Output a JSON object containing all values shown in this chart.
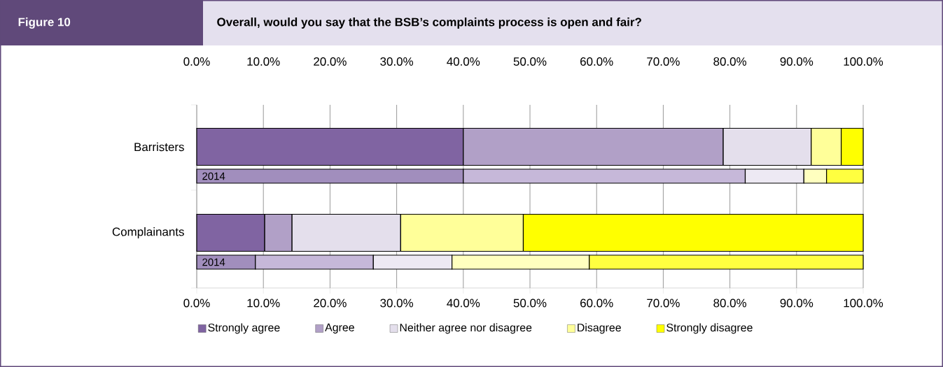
{
  "chart_data": {
    "type": "bar",
    "orientation": "horizontal",
    "stacked": true,
    "title": "Figure 10",
    "subtitle": "Overall, would you say that the BSB’s complaints process is open and fair?",
    "categories": [
      "Barristers",
      "2014",
      "Complainants",
      "2014"
    ],
    "series": [
      {
        "name": "Strongly agree",
        "colors": [
          "#8064a2",
          "#a18ebd",
          "#8064a2",
          "#a18ebd"
        ],
        "values": [
          40.0,
          40.0,
          10.2,
          8.8
        ]
      },
      {
        "name": "Agree",
        "colors": [
          "#b1a0c7",
          "#c6b8d9",
          "#b1a0c7",
          "#c6b8d9"
        ],
        "values": [
          39.0,
          42.3,
          4.1,
          17.7
        ]
      },
      {
        "name": "Neither agree nor disagree",
        "colors": [
          "#e4dfec",
          "#ede9f3",
          "#e4dfec",
          "#ede9f3"
        ],
        "values": [
          13.2,
          8.8,
          16.3,
          11.8
        ]
      },
      {
        "name": "Disagree",
        "colors": [
          "#ffff99",
          "#ffffbf",
          "#ffff99",
          "#ffffbf"
        ],
        "values": [
          4.5,
          3.4,
          18.4,
          20.6
        ]
      },
      {
        "name": "Strongly disagree",
        "colors": [
          "#ffff00",
          "#ffff40",
          "#ffff00",
          "#ffff40"
        ],
        "values": [
          3.3,
          5.5,
          51.0,
          41.1
        ]
      }
    ],
    "xlim": [
      0,
      100
    ],
    "xticks": [
      {
        "value": 0,
        "label": "0.0%"
      },
      {
        "value": 10,
        "label": "10.0%"
      },
      {
        "value": 20,
        "label": "20.0%"
      },
      {
        "value": 30,
        "label": "30.0%"
      },
      {
        "value": 40,
        "label": "40.0%"
      },
      {
        "value": 50,
        "label": "50.0%"
      },
      {
        "value": 60,
        "label": "60.0%"
      },
      {
        "value": 70,
        "label": "70.0%"
      },
      {
        "value": 80,
        "label": "80.0%"
      },
      {
        "value": 90,
        "label": "90.0%"
      },
      {
        "value": 100,
        "label": "100.0%"
      }
    ],
    "x2lim": [
      0,
      100
    ],
    "x2ticks": [
      {
        "value": 0,
        "label": "0.0%"
      },
      {
        "value": 10,
        "label": "10.0%"
      },
      {
        "value": 20,
        "label": "20.0%"
      },
      {
        "value": 30,
        "label": "30.0%"
      },
      {
        "value": 40,
        "label": "40.0%"
      },
      {
        "value": 50,
        "label": "50.0%"
      },
      {
        "value": 60,
        "label": "60.0%"
      },
      {
        "value": 70,
        "label": "70.0%"
      },
      {
        "value": 80,
        "label": "80.0%"
      },
      {
        "value": 90,
        "label": "90.0%"
      },
      {
        "value": 100,
        "label": "100.0%"
      }
    ],
    "grid": "x",
    "legend": "bottom"
  }
}
